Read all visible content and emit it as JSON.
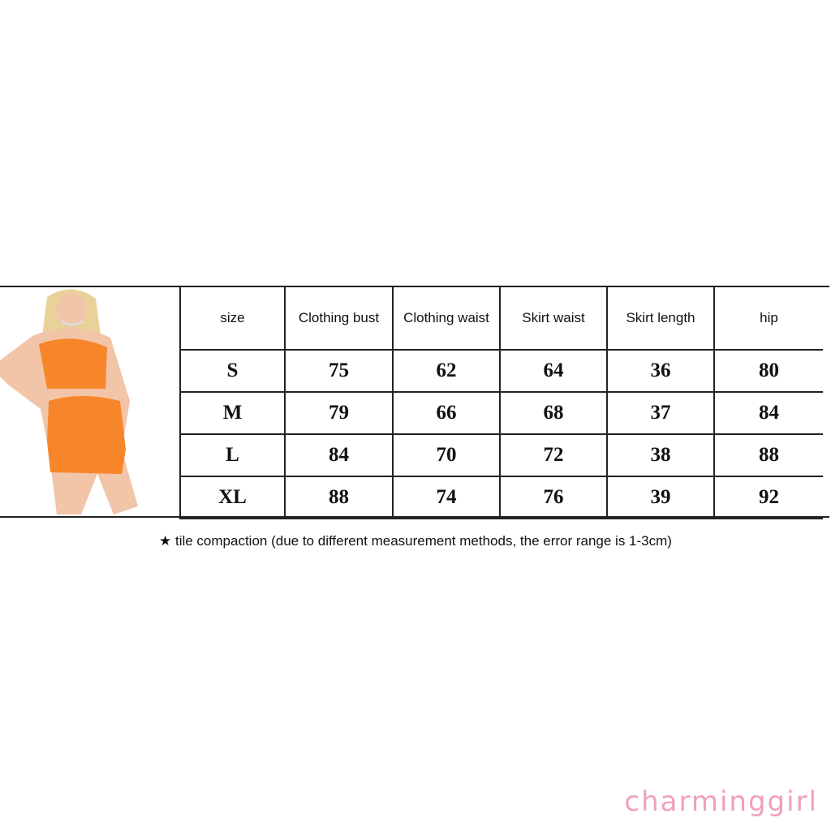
{
  "size_chart": {
    "headers": [
      "size",
      "Clothing bust",
      "Clothing waist",
      "Skirt waist",
      "Skirt length",
      "hip"
    ],
    "rows": [
      [
        "S",
        "75",
        "62",
        "64",
        "36",
        "80"
      ],
      [
        "M",
        "79",
        "66",
        "68",
        "37",
        "84"
      ],
      [
        "L",
        "84",
        "70",
        "72",
        "38",
        "88"
      ],
      [
        "XL",
        "88",
        "74",
        "76",
        "39",
        "92"
      ]
    ]
  },
  "note": "★ tile compaction (due to different measurement methods, the error range is 1-3cm)",
  "brand": "charminggirl",
  "colors": {
    "garment": "#f7862a",
    "brand": "#f0a0bf",
    "border": "#222222"
  }
}
